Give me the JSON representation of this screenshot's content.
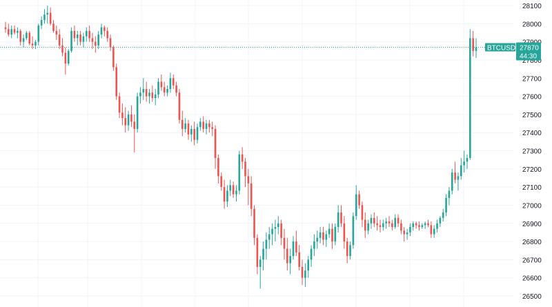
{
  "chart_data": {
    "type": "candlestick",
    "symbol": "BTCUSD",
    "last_price": "27870",
    "countdown": "44:30",
    "y_axis": {
      "ticks": [
        "28100",
        "28000",
        "27900",
        "27800",
        "27700",
        "27600",
        "27500",
        "27400",
        "27300",
        "27200",
        "27100",
        "27000",
        "26900",
        "26800",
        "26700",
        "26600",
        "26500"
      ],
      "range": [
        26480,
        28120
      ]
    },
    "grid": true,
    "colors": {
      "up": "#26a69a",
      "down": "#ef5350",
      "grid": "#f0f3fa",
      "axis_text": "#131722",
      "tag": "#26a69a"
    },
    "candles": [
      [
        27980,
        28010,
        27950,
        27970
      ],
      [
        27970,
        28000,
        27930,
        27940
      ],
      [
        27940,
        27990,
        27920,
        27970
      ],
      [
        27970,
        27990,
        27940,
        27950
      ],
      [
        27950,
        27980,
        27920,
        27960
      ],
      [
        27960,
        27970,
        27880,
        27900
      ],
      [
        27900,
        27940,
        27870,
        27920
      ],
      [
        27920,
        27960,
        27910,
        27950
      ],
      [
        27950,
        27960,
        27880,
        27890
      ],
      [
        27890,
        27930,
        27860,
        27880
      ],
      [
        27880,
        27910,
        27860,
        27900
      ],
      [
        27900,
        28000,
        27880,
        27990
      ],
      [
        27990,
        28040,
        27970,
        28020
      ],
      [
        28020,
        28080,
        28000,
        28050
      ],
      [
        28050,
        28100,
        28000,
        28060
      ],
      [
        28060,
        28090,
        27990,
        28000
      ],
      [
        28000,
        28020,
        27950,
        27960
      ],
      [
        27960,
        27990,
        27910,
        27940
      ],
      [
        27940,
        27970,
        27860,
        27880
      ],
      [
        27880,
        27920,
        27820,
        27840
      ],
      [
        27840,
        27870,
        27720,
        27780
      ],
      [
        27780,
        27860,
        27770,
        27850
      ],
      [
        27850,
        27980,
        27840,
        27960
      ],
      [
        27960,
        27990,
        27900,
        27920
      ],
      [
        27920,
        27960,
        27880,
        27940
      ],
      [
        27940,
        27960,
        27880,
        27900
      ],
      [
        27900,
        27950,
        27870,
        27930
      ],
      [
        27930,
        27980,
        27900,
        27960
      ],
      [
        27960,
        27990,
        27900,
        27920
      ],
      [
        27920,
        27950,
        27860,
        27900
      ],
      [
        27900,
        27930,
        27840,
        27880
      ],
      [
        27880,
        27960,
        27860,
        27940
      ],
      [
        27940,
        28000,
        27920,
        27980
      ],
      [
        27980,
        27990,
        27930,
        27960
      ],
      [
        27960,
        27980,
        27900,
        27920
      ],
      [
        27920,
        27940,
        27850,
        27870
      ],
      [
        27870,
        27880,
        27740,
        27760
      ],
      [
        27760,
        27780,
        27580,
        27600
      ],
      [
        27600,
        27620,
        27480,
        27510
      ],
      [
        27510,
        27560,
        27440,
        27480
      ],
      [
        27480,
        27540,
        27400,
        27440
      ],
      [
        27440,
        27520,
        27410,
        27500
      ],
      [
        27500,
        27550,
        27430,
        27460
      ],
      [
        27460,
        27500,
        27290,
        27420
      ],
      [
        27420,
        27620,
        27400,
        27600
      ],
      [
        27600,
        27650,
        27560,
        27620
      ],
      [
        27620,
        27700,
        27580,
        27640
      ],
      [
        27640,
        27680,
        27570,
        27600
      ],
      [
        27600,
        27640,
        27560,
        27620
      ],
      [
        27620,
        27660,
        27570,
        27590
      ],
      [
        27590,
        27640,
        27550,
        27610
      ],
      [
        27610,
        27700,
        27590,
        27680
      ],
      [
        27680,
        27720,
        27630,
        27650
      ],
      [
        27650,
        27680,
        27600,
        27620
      ],
      [
        27620,
        27660,
        27600,
        27640
      ],
      [
        27640,
        27730,
        27620,
        27700
      ],
      [
        27700,
        27720,
        27640,
        27660
      ],
      [
        27660,
        27680,
        27600,
        27620
      ],
      [
        27620,
        27640,
        27450,
        27470
      ],
      [
        27470,
        27520,
        27380,
        27420
      ],
      [
        27420,
        27480,
        27400,
        27450
      ],
      [
        27450,
        27470,
        27360,
        27390
      ],
      [
        27390,
        27440,
        27350,
        27420
      ],
      [
        27420,
        27460,
        27330,
        27360
      ],
      [
        27360,
        27450,
        27340,
        27430
      ],
      [
        27430,
        27480,
        27410,
        27460
      ],
      [
        27460,
        27490,
        27400,
        27420
      ],
      [
        27420,
        27470,
        27390,
        27450
      ],
      [
        27450,
        27470,
        27400,
        27430
      ],
      [
        27430,
        27460,
        27380,
        27420
      ],
      [
        27420,
        27440,
        27200,
        27260
      ],
      [
        27260,
        27280,
        27120,
        27160
      ],
      [
        27160,
        27180,
        27080,
        27100
      ],
      [
        27100,
        27140,
        26980,
        27020
      ],
      [
        27020,
        27110,
        26990,
        27080
      ],
      [
        27080,
        27140,
        27050,
        27110
      ],
      [
        27110,
        27130,
        27040,
        27060
      ],
      [
        27060,
        27110,
        27020,
        27080
      ],
      [
        27080,
        27300,
        27060,
        27280
      ],
      [
        27280,
        27320,
        27200,
        27240
      ],
      [
        27240,
        27260,
        27100,
        27160
      ],
      [
        27160,
        27200,
        27000,
        27120
      ],
      [
        27120,
        27160,
        26940,
        26980
      ],
      [
        26980,
        27000,
        26780,
        26820
      ],
      [
        26820,
        26840,
        26620,
        26660
      ],
      [
        26660,
        26720,
        26540,
        26700
      ],
      [
        26700,
        26800,
        26640,
        26760
      ],
      [
        26760,
        26850,
        26700,
        26810
      ],
      [
        26810,
        26880,
        26760,
        26840
      ],
      [
        26840,
        26900,
        26780,
        26870
      ],
      [
        26870,
        26920,
        26800,
        26880
      ],
      [
        26880,
        26940,
        26840,
        26900
      ],
      [
        26900,
        26920,
        26780,
        26820
      ],
      [
        26820,
        26870,
        26700,
        26760
      ],
      [
        26760,
        26820,
        26640,
        26680
      ],
      [
        26680,
        26760,
        26620,
        26720
      ],
      [
        26720,
        26830,
        26700,
        26800
      ],
      [
        26800,
        26860,
        26720,
        26740
      ],
      [
        26740,
        26780,
        26640,
        26660
      ],
      [
        26660,
        26700,
        26560,
        26600
      ],
      [
        26600,
        26680,
        26550,
        26640
      ],
      [
        26640,
        26720,
        26600,
        26700
      ],
      [
        26700,
        26780,
        26660,
        26760
      ],
      [
        26760,
        26840,
        26720,
        26800
      ],
      [
        26800,
        26860,
        26760,
        26820
      ],
      [
        26820,
        26880,
        26790,
        26850
      ],
      [
        26850,
        26880,
        26780,
        26810
      ],
      [
        26810,
        26860,
        26770,
        26840
      ],
      [
        26840,
        26900,
        26820,
        26870
      ],
      [
        26870,
        26900,
        26760,
        26800
      ],
      [
        26800,
        26900,
        26780,
        26880
      ],
      [
        26880,
        27000,
        26850,
        26960
      ],
      [
        26960,
        27000,
        26880,
        26900
      ],
      [
        26900,
        26940,
        26760,
        26800
      ],
      [
        26800,
        26820,
        26680,
        26720
      ],
      [
        26720,
        26800,
        26700,
        26780
      ],
      [
        26780,
        26960,
        26760,
        26940
      ],
      [
        26940,
        27110,
        26920,
        27060
      ],
      [
        27060,
        27080,
        26980,
        27000
      ],
      [
        27000,
        27020,
        26880,
        26920
      ],
      [
        26920,
        26960,
        26820,
        26860
      ],
      [
        26860,
        26920,
        26840,
        26900
      ],
      [
        26900,
        26950,
        26870,
        26930
      ],
      [
        26930,
        26960,
        26880,
        26900
      ],
      [
        26900,
        26940,
        26860,
        26890
      ],
      [
        26890,
        26920,
        26850,
        26880
      ],
      [
        26880,
        26920,
        26860,
        26900
      ],
      [
        26900,
        26930,
        26870,
        26910
      ],
      [
        26910,
        26940,
        26880,
        26900
      ],
      [
        26900,
        26920,
        26860,
        26880
      ],
      [
        26880,
        26950,
        26870,
        26930
      ],
      [
        26930,
        26950,
        26880,
        26900
      ],
      [
        26900,
        26920,
        26840,
        26860
      ],
      [
        26860,
        26880,
        26800,
        26840
      ],
      [
        26840,
        26870,
        26810,
        26850
      ],
      [
        26850,
        26900,
        26830,
        26880
      ],
      [
        26880,
        26910,
        26860,
        26900
      ],
      [
        26900,
        26910,
        26870,
        26890
      ],
      [
        26890,
        26910,
        26860,
        26880
      ],
      [
        26880,
        26900,
        26870,
        26890
      ],
      [
        26890,
        26910,
        26870,
        26900
      ],
      [
        26900,
        26920,
        26880,
        26890
      ],
      [
        26890,
        26910,
        26820,
        26840
      ],
      [
        26840,
        26890,
        26820,
        26870
      ],
      [
        26870,
        26920,
        26850,
        26900
      ],
      [
        26900,
        26940,
        26880,
        26930
      ],
      [
        26930,
        26980,
        26910,
        26960
      ],
      [
        26960,
        27060,
        26940,
        27040
      ],
      [
        27040,
        27100,
        27000,
        27080
      ],
      [
        27080,
        27200,
        27060,
        27180
      ],
      [
        27180,
        27240,
        27120,
        27140
      ],
      [
        27140,
        27180,
        27080,
        27160
      ],
      [
        27160,
        27260,
        27140,
        27220
      ],
      [
        27220,
        27300,
        27180,
        27240
      ],
      [
        27240,
        27280,
        27200,
        27260
      ],
      [
        27260,
        27970,
        27250,
        27920
      ],
      [
        27920,
        27960,
        27820,
        27850
      ],
      [
        27850,
        27920,
        27810,
        27870
      ]
    ]
  }
}
